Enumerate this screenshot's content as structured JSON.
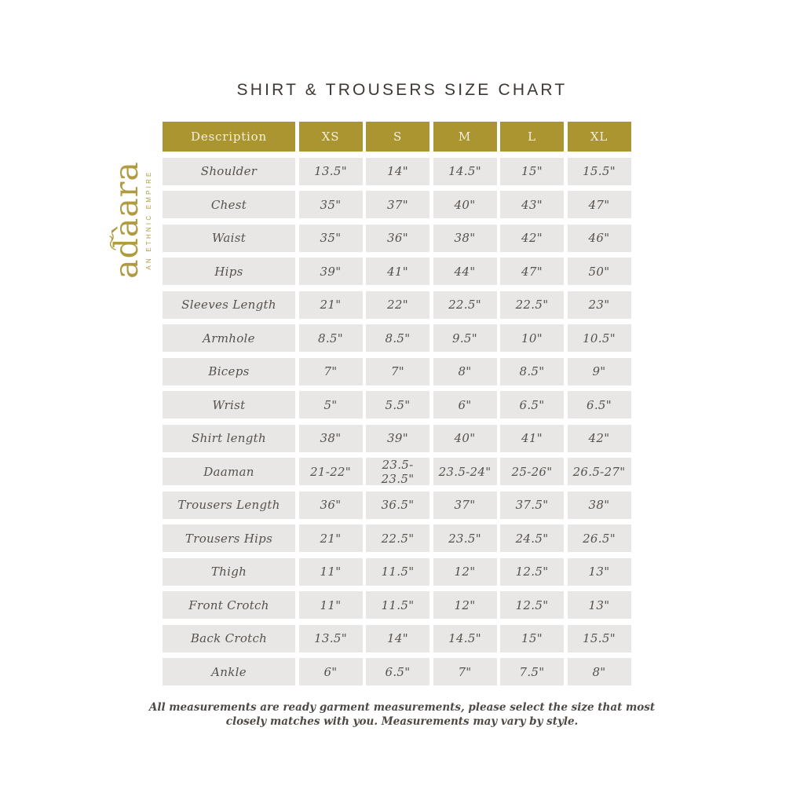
{
  "title": "SHIRT & TROUSERS SIZE CHART",
  "logo": {
    "brand": "adàara",
    "tagline": "AN ETHNIC EMPIRE"
  },
  "table": {
    "headers": [
      "Description",
      "XS",
      "S",
      "M",
      "L",
      "XL"
    ],
    "rows": [
      {
        "label": "Shoulder",
        "values": [
          "13.5\"",
          "14\"",
          "14.5\"",
          "15\"",
          "15.5\""
        ]
      },
      {
        "label": "Chest",
        "values": [
          "35\"",
          "37\"",
          "40\"",
          "43\"",
          "47\""
        ]
      },
      {
        "label": "Waist",
        "values": [
          "35\"",
          "36\"",
          "38\"",
          "42\"",
          "46\""
        ]
      },
      {
        "label": "Hips",
        "values": [
          "39\"",
          "41\"",
          "44\"",
          "47\"",
          "50\""
        ]
      },
      {
        "label": "Sleeves Length",
        "values": [
          "21\"",
          "22\"",
          "22.5\"",
          "22.5\"",
          "23\""
        ]
      },
      {
        "label": "Armhole",
        "values": [
          "8.5\"",
          "8.5\"",
          "9.5\"",
          "10\"",
          "10.5\""
        ]
      },
      {
        "label": "Biceps",
        "values": [
          "7\"",
          "7\"",
          "8\"",
          "8.5\"",
          "9\""
        ]
      },
      {
        "label": "Wrist",
        "values": [
          "5\"",
          "5.5\"",
          "6\"",
          "6.5\"",
          "6.5\""
        ]
      },
      {
        "label": "Shirt length",
        "values": [
          "38\"",
          "39\"",
          "40\"",
          "41\"",
          "42\""
        ]
      },
      {
        "label": "Daaman",
        "values": [
          "21-22\"",
          "23.5-23.5\"",
          "23.5-24\"",
          "25-26\"",
          "26.5-27\""
        ]
      },
      {
        "label": "Trousers Length",
        "values": [
          "36\"",
          "36.5\"",
          "37\"",
          "37.5\"",
          "38\""
        ]
      },
      {
        "label": "Trousers Hips",
        "values": [
          "21\"",
          "22.5\"",
          "23.5\"",
          "24.5\"",
          "26.5\""
        ]
      },
      {
        "label": "Thigh",
        "values": [
          "11\"",
          "11.5\"",
          "12\"",
          "12.5\"",
          "13\""
        ]
      },
      {
        "label": "Front Crotch",
        "values": [
          "11\"",
          "11.5\"",
          "12\"",
          "12.5\"",
          "13\""
        ]
      },
      {
        "label": "Back Crotch",
        "values": [
          "13.5\"",
          "14\"",
          "14.5\"",
          "15\"",
          "15.5\""
        ]
      },
      {
        "label": "Ankle",
        "values": [
          "6\"",
          "6.5\"",
          "7\"",
          "7.5\"",
          "8\""
        ]
      }
    ]
  },
  "footer": {
    "line1": "All measurements are ready garment measurements, please select the size that most",
    "line2": "closely matches with you. Measurements may vary by style."
  },
  "colors": {
    "header_gold": "#ab9531",
    "header_text": "#f5efdb",
    "cell_background": "#e8e7e5",
    "cell_text": "#57514d",
    "logo_gold": "#b19b42",
    "title_text": "#3e3834",
    "page_background": "#ffffff"
  }
}
